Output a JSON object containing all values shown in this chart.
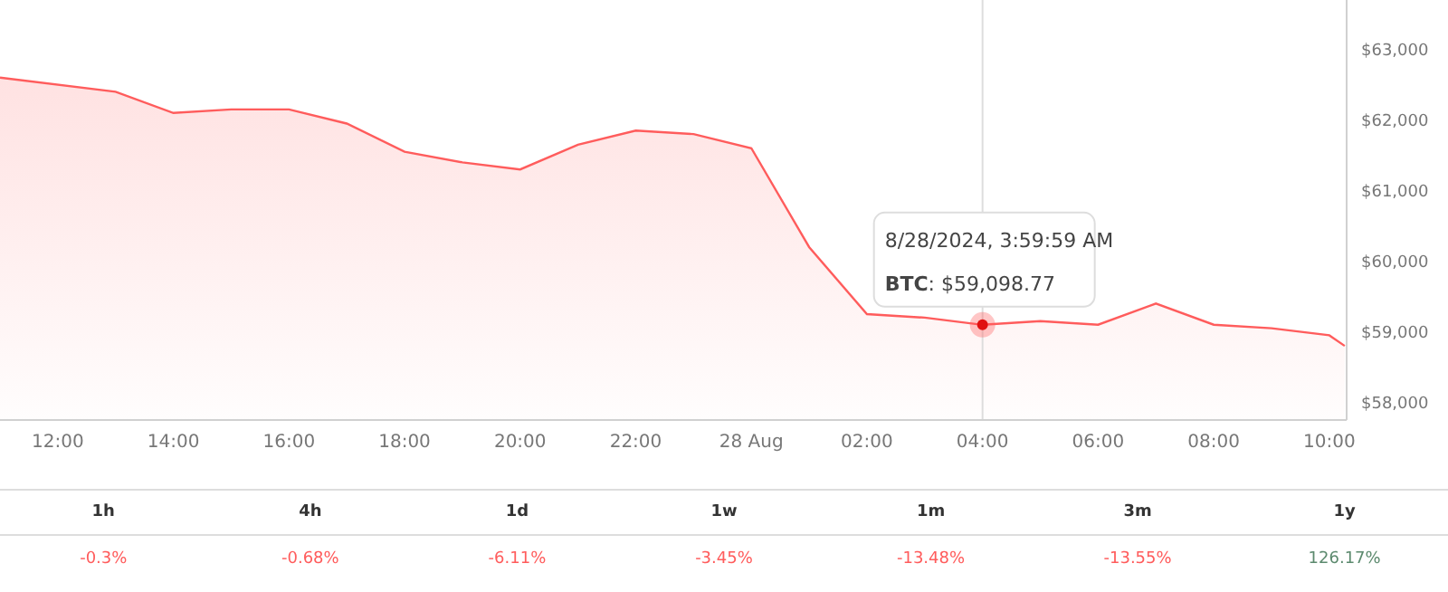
{
  "chart_data": [
    {
      "type": "area",
      "x": [
        "2024-08-27T11:00",
        "2024-08-27T13:00",
        "2024-08-27T14:00",
        "2024-08-27T15:00",
        "2024-08-27T16:00",
        "2024-08-27T17:00",
        "2024-08-27T18:00",
        "2024-08-27T19:00",
        "2024-08-27T20:00",
        "2024-08-27T21:00",
        "2024-08-27T22:00",
        "2024-08-27T23:00",
        "2024-08-28T00:00",
        "2024-08-28T01:00",
        "2024-08-28T02:00",
        "2024-08-28T03:00",
        "2024-08-28T04:00",
        "2024-08-28T05:00",
        "2024-08-28T06:00",
        "2024-08-28T07:00",
        "2024-08-28T08:00",
        "2024-08-28T09:00",
        "2024-08-28T10:00",
        "2024-08-28T10:16"
      ],
      "series": [
        {
          "color": "#ff5c5c",
          "values": [
            62600,
            62400,
            62100,
            62150,
            62150,
            61950,
            61550,
            61400,
            61300,
            61650,
            61850,
            61800,
            61600,
            60200,
            59250,
            59200,
            59098.77,
            59150,
            59100,
            59400,
            59100,
            59050,
            58950,
            58800
          ]
        }
      ],
      "xlim": [
        "2024-08-27T11:00",
        "2024-08-28T10:18"
      ],
      "xticks": [
        {
          "value": "2024-08-27T12:00",
          "label": "12:00"
        },
        {
          "value": "2024-08-27T14:00",
          "label": "14:00"
        },
        {
          "value": "2024-08-27T16:00",
          "label": "16:00"
        },
        {
          "value": "2024-08-27T18:00",
          "label": "18:00"
        },
        {
          "value": "2024-08-27T20:00",
          "label": "20:00"
        },
        {
          "value": "2024-08-27T22:00",
          "label": "22:00"
        },
        {
          "value": "2024-08-28T00:00",
          "label": "28 Aug"
        },
        {
          "value": "2024-08-28T02:00",
          "label": "02:00"
        },
        {
          "value": "2024-08-28T04:00",
          "label": "04:00"
        },
        {
          "value": "2024-08-28T06:00",
          "label": "06:00"
        },
        {
          "value": "2024-08-28T08:00",
          "label": "08:00"
        },
        {
          "value": "2024-08-28T10:00",
          "label": "10:00"
        }
      ],
      "ylim": [
        57750,
        63700
      ],
      "yticks": [
        {
          "value": 58000,
          "label": "$58,000"
        },
        {
          "value": 59000,
          "label": "$59,000"
        },
        {
          "value": 60000,
          "label": "$60,000"
        },
        {
          "value": 61000,
          "label": "$61,000"
        },
        {
          "value": 62000,
          "label": "$62,000"
        },
        {
          "value": 63000,
          "label": "$63,000"
        }
      ],
      "ref_lines": [
        {
          "axis": "x",
          "value": "2024-08-28T04:00",
          "color": "#dddddd"
        }
      ],
      "annotations": [
        "8/28/2024, 3:59:59 AM",
        "BTC: $59,098.77"
      ],
      "grid": false,
      "legend": false
    },
    {
      "type": "other",
      "categories": [
        "1h",
        "4h",
        "1d",
        "1w",
        "1m",
        "3m",
        "1y"
      ],
      "values": [
        -0.3,
        -0.68,
        -6.11,
        -3.45,
        -13.48,
        -13.55,
        126.17
      ],
      "value_labels": [
        "-0.3%",
        "-0.68%",
        "-6.11%",
        "-3.45%",
        "-13.48%",
        "-13.55%",
        "126.17%"
      ]
    }
  ]
}
